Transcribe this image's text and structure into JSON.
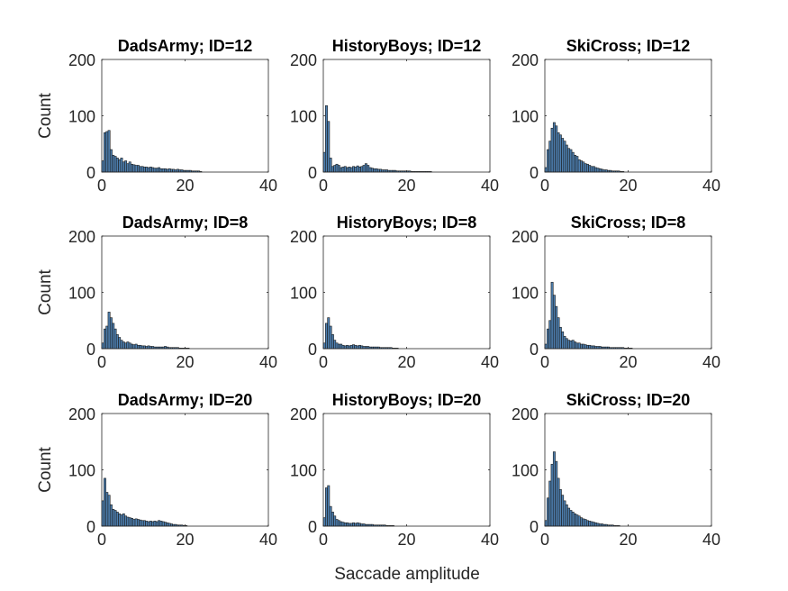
{
  "figure": {
    "xlabel": "Saccade amplitude"
  },
  "colors": {
    "bar_fill": "#4d7fb0",
    "bar_edge": "#1b1b1b",
    "axis": "#262626"
  },
  "chart_data": [
    {
      "type": "bar",
      "title": "DadsArmy; ID=12",
      "ylabel": "Count",
      "xlim": [
        0,
        40
      ],
      "ylim": [
        0,
        200
      ],
      "xticks": [
        "0",
        "20",
        "40"
      ],
      "yticks": [
        "0",
        "100",
        "200"
      ],
      "bin_width": 0.5,
      "values": [
        20,
        70,
        72,
        74,
        40,
        30,
        28,
        25,
        22,
        25,
        18,
        20,
        15,
        18,
        14,
        13,
        12,
        12,
        10,
        10,
        9,
        9,
        8,
        9,
        8,
        7,
        7,
        8,
        6,
        6,
        6,
        5,
        6,
        5,
        5,
        4,
        5,
        4,
        4,
        3,
        3,
        3,
        3,
        2,
        2,
        2,
        2,
        1
      ]
    },
    {
      "type": "bar",
      "title": "HistoryBoys; ID=12",
      "ylabel": "",
      "xlim": [
        0,
        40
      ],
      "ylim": [
        0,
        200
      ],
      "xticks": [
        "0",
        "20",
        "40"
      ],
      "yticks": [
        "0",
        "100",
        "200"
      ],
      "bin_width": 0.5,
      "values": [
        35,
        118,
        90,
        25,
        10,
        12,
        14,
        12,
        8,
        9,
        10,
        8,
        9,
        8,
        10,
        9,
        11,
        9,
        10,
        12,
        15,
        12,
        8,
        7,
        6,
        6,
        5,
        5,
        4,
        4,
        4,
        3,
        3,
        3,
        3,
        2,
        2,
        2,
        2,
        2,
        2,
        2,
        1,
        1,
        1,
        1,
        1,
        1,
        1,
        1,
        1,
        1
      ]
    },
    {
      "type": "bar",
      "title": "SkiCross; ID=12",
      "ylabel": "",
      "xlim": [
        0,
        40
      ],
      "ylim": [
        0,
        200
      ],
      "xticks": [
        "0",
        "20",
        "40"
      ],
      "yticks": [
        "0",
        "100",
        "200"
      ],
      "bin_width": 0.5,
      "values": [
        8,
        40,
        55,
        78,
        88,
        82,
        70,
        66,
        60,
        55,
        48,
        42,
        40,
        35,
        30,
        28,
        22,
        20,
        18,
        15,
        14,
        12,
        10,
        10,
        8,
        7,
        6,
        5,
        4,
        4,
        3,
        3,
        2,
        2,
        2,
        2,
        1,
        1
      ]
    },
    {
      "type": "bar",
      "title": "DadsArmy; ID=8",
      "ylabel": "Count",
      "xlim": [
        0,
        40
      ],
      "ylim": [
        0,
        200
      ],
      "xticks": [
        "0",
        "20",
        "40"
      ],
      "yticks": [
        "0",
        "100",
        "200"
      ],
      "bin_width": 0.5,
      "values": [
        10,
        35,
        40,
        65,
        55,
        45,
        35,
        25,
        20,
        15,
        12,
        10,
        12,
        10,
        8,
        7,
        8,
        6,
        6,
        5,
        5,
        4,
        5,
        4,
        4,
        3,
        3,
        3,
        3,
        3,
        4,
        3,
        2,
        2,
        2,
        2,
        2,
        1,
        1,
        1,
        1,
        1
      ]
    },
    {
      "type": "bar",
      "title": "HistoryBoys; ID=8",
      "ylabel": "",
      "xlim": [
        0,
        40
      ],
      "ylim": [
        0,
        200
      ],
      "xticks": [
        "0",
        "20",
        "40"
      ],
      "yticks": [
        "0",
        "100",
        "200"
      ],
      "bin_width": 0.5,
      "values": [
        10,
        45,
        55,
        40,
        25,
        15,
        10,
        8,
        8,
        6,
        5,
        6,
        5,
        6,
        7,
        6,
        5,
        6,
        5,
        4,
        4,
        4,
        3,
        3,
        3,
        3,
        3,
        2,
        2,
        2,
        2,
        2,
        2,
        1,
        1,
        1
      ]
    },
    {
      "type": "bar",
      "title": "SkiCross; ID=8",
      "ylabel": "",
      "xlim": [
        0,
        40
      ],
      "ylim": [
        0,
        200
      ],
      "xticks": [
        "0",
        "20",
        "40"
      ],
      "yticks": [
        "0",
        "100",
        "200"
      ],
      "bin_width": 0.5,
      "values": [
        8,
        35,
        50,
        118,
        95,
        75,
        55,
        38,
        30,
        22,
        18,
        15,
        14,
        15,
        12,
        10,
        10,
        8,
        8,
        7,
        6,
        6,
        5,
        5,
        4,
        4,
        4,
        3,
        3,
        3,
        3,
        2,
        2,
        2,
        2,
        2,
        2,
        2,
        1,
        1,
        1,
        1
      ]
    },
    {
      "type": "bar",
      "title": "DadsArmy; ID=20",
      "ylabel": "Count",
      "xlim": [
        0,
        40
      ],
      "ylim": [
        0,
        200
      ],
      "xticks": [
        "0",
        "20",
        "40"
      ],
      "yticks": [
        "0",
        "100",
        "200"
      ],
      "bin_width": 0.5,
      "values": [
        45,
        85,
        60,
        55,
        38,
        30,
        28,
        25,
        22,
        20,
        22,
        18,
        16,
        15,
        14,
        12,
        13,
        12,
        11,
        10,
        10,
        9,
        8,
        9,
        8,
        9,
        8,
        10,
        9,
        8,
        7,
        6,
        5,
        4,
        3,
        3,
        2,
        2,
        2,
        1,
        1
      ]
    },
    {
      "type": "bar",
      "title": "HistoryBoys; ID=20",
      "ylabel": "",
      "xlim": [
        0,
        40
      ],
      "ylim": [
        0,
        200
      ],
      "xticks": [
        "0",
        "20",
        "40"
      ],
      "yticks": [
        "0",
        "100",
        "200"
      ],
      "bin_width": 0.5,
      "values": [
        15,
        68,
        72,
        35,
        25,
        18,
        12,
        10,
        8,
        7,
        6,
        6,
        5,
        5,
        6,
        5,
        6,
        5,
        4,
        4,
        3,
        3,
        3,
        3,
        2,
        2,
        2,
        2,
        2,
        2,
        1,
        1,
        1,
        1
      ]
    },
    {
      "type": "bar",
      "title": "SkiCross; ID=20",
      "ylabel": "",
      "xlim": [
        0,
        40
      ],
      "ylim": [
        0,
        200
      ],
      "xticks": [
        "0",
        "20",
        "40"
      ],
      "yticks": [
        "0",
        "100",
        "200"
      ],
      "bin_width": 0.5,
      "values": [
        10,
        50,
        80,
        110,
        132,
        115,
        85,
        65,
        55,
        45,
        38,
        32,
        28,
        25,
        22,
        20,
        18,
        15,
        13,
        12,
        10,
        9,
        8,
        7,
        6,
        5,
        4,
        4,
        3,
        3,
        2,
        2,
        2,
        1,
        1,
        1
      ]
    }
  ]
}
